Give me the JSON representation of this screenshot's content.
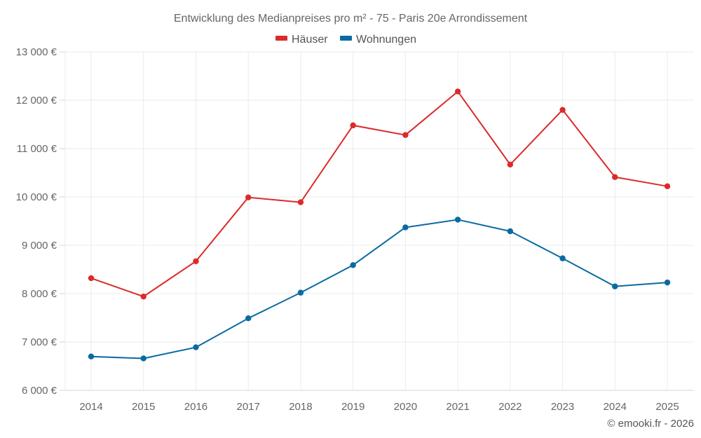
{
  "chart_data": {
    "type": "line",
    "title": "Entwicklung des Medianpreises pro m² - 75 - Paris 20e Arrondissement",
    "xlabel": "",
    "ylabel": "",
    "categories": [
      "2014",
      "2015",
      "2016",
      "2017",
      "2018",
      "2019",
      "2020",
      "2021",
      "2022",
      "2023",
      "2024",
      "2025"
    ],
    "ylim": [
      6000,
      13000
    ],
    "yticks": [
      6000,
      7000,
      8000,
      9000,
      10000,
      11000,
      12000,
      13000
    ],
    "ytick_labels": [
      "6 000 €",
      "7 000 €",
      "8 000 €",
      "9 000 €",
      "10 000 €",
      "11 000 €",
      "12 000 €",
      "13 000 €"
    ],
    "grid": true,
    "legend_position": "top-center",
    "series": [
      {
        "name": "Häuser",
        "color": "#dc2a2a",
        "values": [
          8320,
          7940,
          8670,
          9990,
          9890,
          11480,
          11280,
          12180,
          10670,
          11800,
          10410,
          10220
        ]
      },
      {
        "name": "Wohnungen",
        "color": "#0a6aa1",
        "values": [
          6700,
          6660,
          6890,
          7490,
          8020,
          8590,
          9370,
          9530,
          9290,
          8730,
          8150,
          8230
        ]
      }
    ],
    "credit": "© emooki.fr - 2026"
  }
}
